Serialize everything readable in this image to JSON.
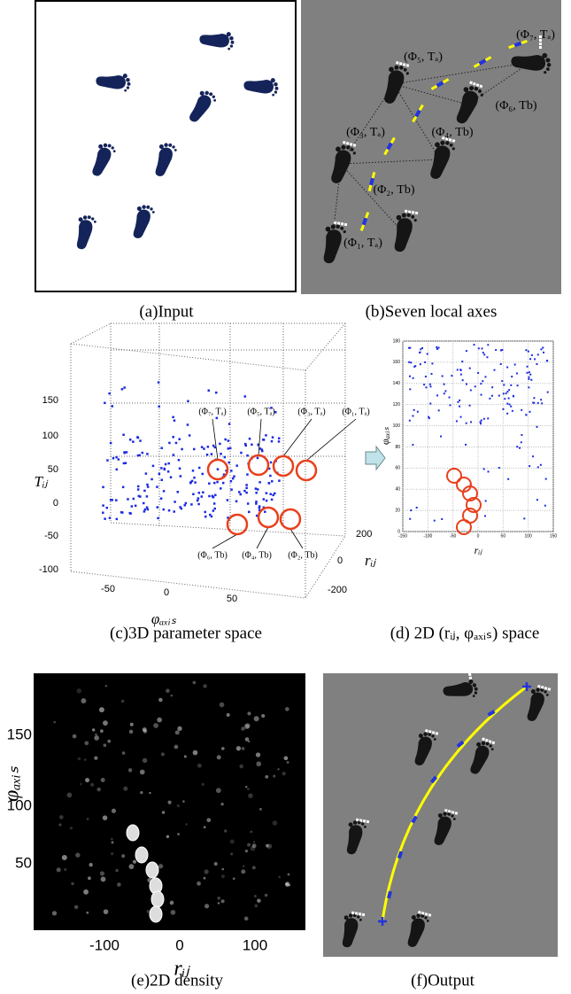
{
  "panels": {
    "a": {
      "caption": "(a)Input"
    },
    "b": {
      "caption": "(b)Seven local axes",
      "labels": [
        "(Φ₇, Tₐ)",
        "(Φ₅, Tₐ)",
        "(Φ₆, Tb)",
        "(Φ₃, Tₐ)",
        "(Φ₄, Tb)",
        "(Φ₂, Tb)",
        "(Φ₁, Tₐ)"
      ]
    },
    "c": {
      "caption": "(c)3D parameter space",
      "y_label": "Tᵢⱼ",
      "x_label": "φₐₓᵢₛ",
      "z_label": "rᵢⱼ",
      "yticks": [
        150,
        100,
        50,
        0,
        -50,
        -100
      ],
      "xticks": [
        -50,
        0,
        50
      ],
      "zticks": [
        200,
        0,
        -200
      ],
      "labels": [
        "(Φ₇, Tₐ)",
        "(Φ₅, Tₐ)",
        "(Φ₃, Tₐ)",
        "(Φ₁, Tₐ)",
        "(Φ₆, Tb)",
        "(Φ₄, Tb)",
        "(Φ₂, Tb)"
      ]
    },
    "d": {
      "caption": "(d) 2D (rᵢⱼ, φₐₓᵢₛ) space",
      "y_label": "φₐₓᵢₛ",
      "x_label": "rᵢⱼ",
      "yticks": [
        180,
        160,
        140,
        120,
        100,
        80,
        60,
        40,
        20,
        0
      ],
      "xticks": [
        -150,
        -100,
        -50,
        0,
        50,
        100,
        150
      ]
    },
    "e": {
      "caption": "(e)2D density",
      "y_label": "φₐₓᵢₛ",
      "x_label": "rᵢⱼ",
      "yticks": [
        150,
        100,
        50
      ],
      "xticks": [
        -100,
        0,
        100
      ]
    },
    "f": {
      "caption": "(f)Output"
    }
  }
}
